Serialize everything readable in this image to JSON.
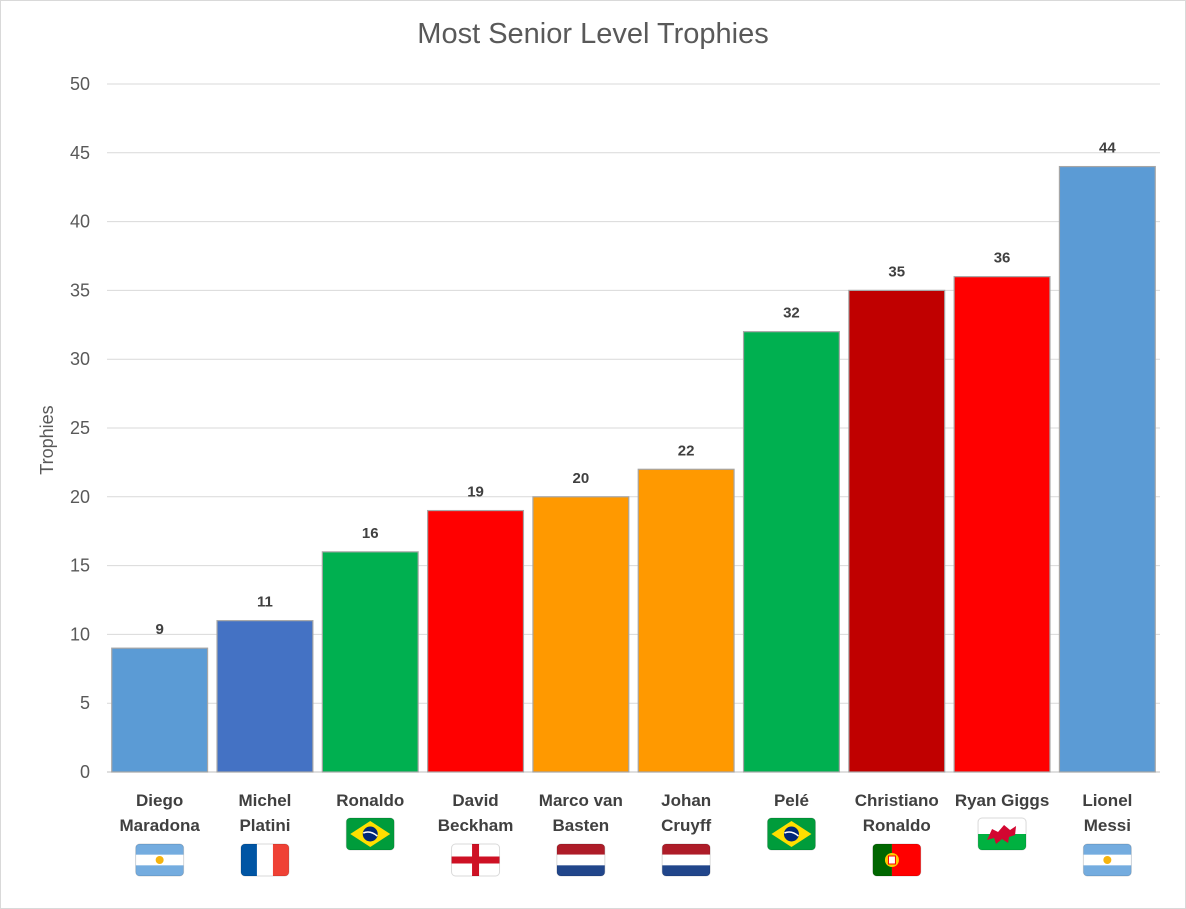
{
  "chart_data": {
    "type": "bar",
    "title": "Most Senior Level Trophies",
    "xlabel": "",
    "ylabel": "Trophies",
    "ylim": [
      0,
      50
    ],
    "yticks": [
      0,
      5,
      10,
      15,
      20,
      25,
      30,
      35,
      40,
      45,
      50
    ],
    "grid": true,
    "legend": "none",
    "categories": [
      [
        "Diego",
        "Maradona"
      ],
      [
        "Michel",
        "Platini"
      ],
      [
        "Ronaldo"
      ],
      [
        "David",
        "Beckham"
      ],
      [
        "Marco van",
        "Basten"
      ],
      [
        "Johan",
        "Cruyff"
      ],
      [
        "Pelé"
      ],
      [
        "Christiano",
        "Ronaldo"
      ],
      [
        "Ryan Giggs"
      ],
      [
        "Lionel",
        "Messi"
      ]
    ],
    "values": [
      9,
      11,
      16,
      19,
      20,
      22,
      32,
      35,
      36,
      44
    ],
    "bar_colors": [
      "#5b9bd5",
      "#4472c4",
      "#00b050",
      "#ff0000",
      "#ff9900",
      "#ff9900",
      "#00b050",
      "#c00000",
      "#ff0000",
      "#5b9bd5"
    ],
    "flags": [
      "argentina-flag-icon",
      "france-flag-icon",
      "brazil-flag-icon",
      "england-flag-icon",
      "netherlands-flag-icon",
      "netherlands-flag-icon",
      "brazil-flag-icon",
      "portugal-flag-icon",
      "wales-flag-icon",
      "argentina-flag-icon"
    ]
  }
}
